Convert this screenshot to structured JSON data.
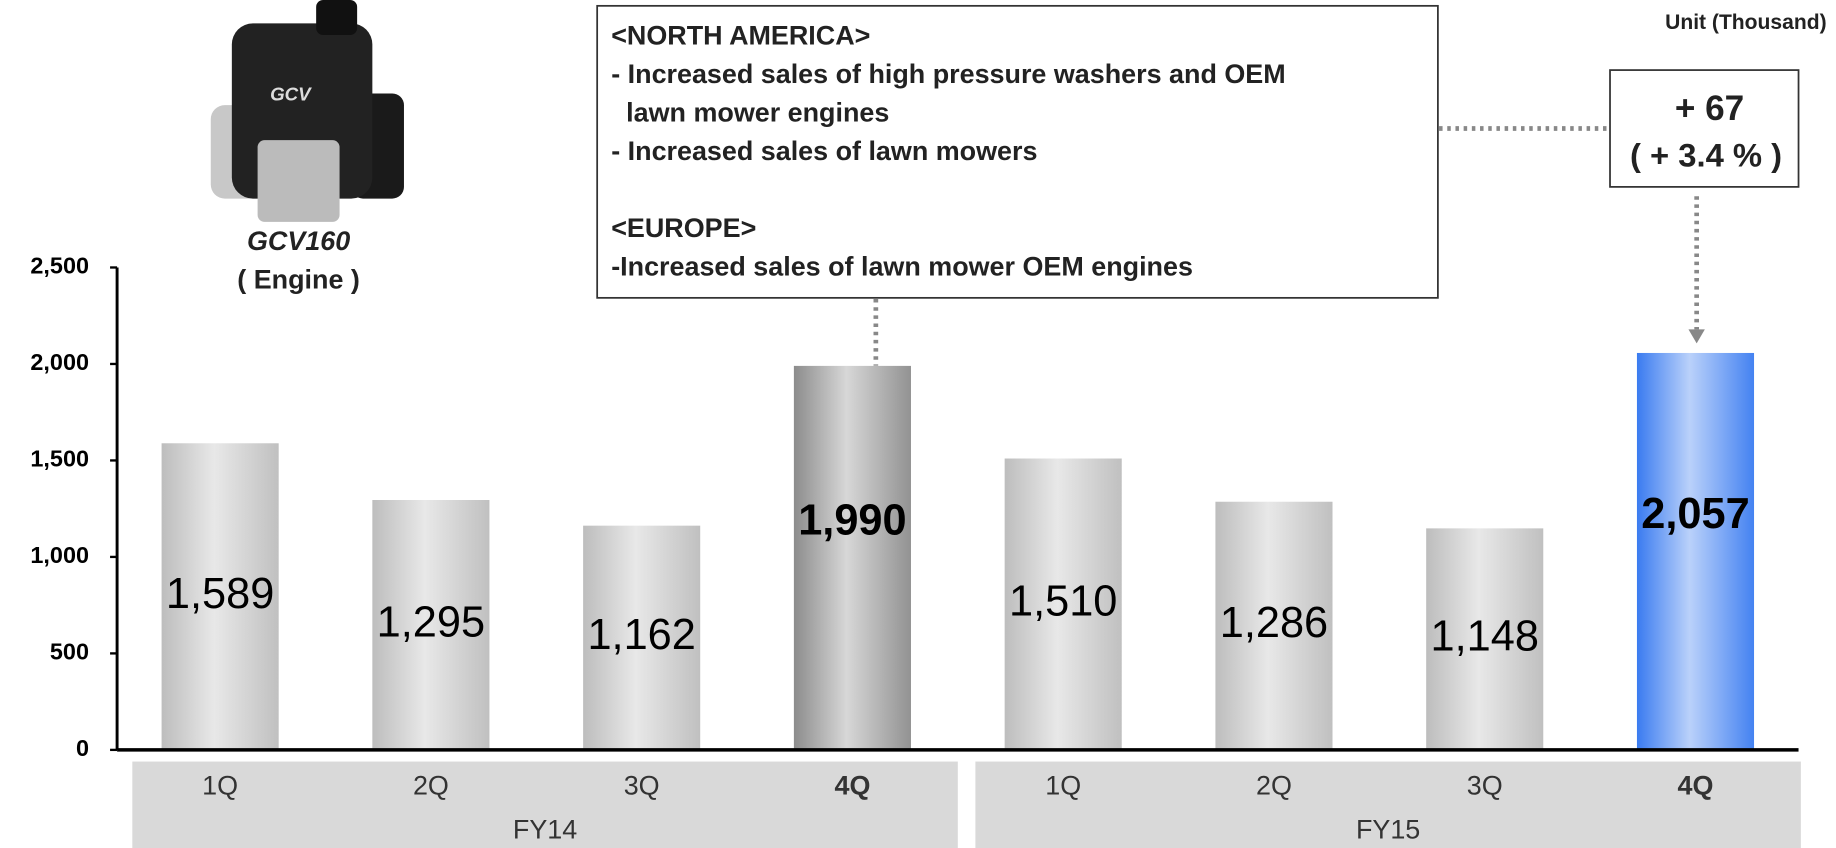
{
  "chart_data": {
    "type": "bar",
    "unit": "Unit (Thousand)",
    "product_name": "GCV160",
    "product_type": "( Engine )",
    "categories": [
      "1Q",
      "2Q",
      "3Q",
      "4Q",
      "1Q",
      "2Q",
      "3Q",
      "4Q"
    ],
    "groups": [
      {
        "label": "FY14",
        "size": 4
      },
      {
        "label": "FY15",
        "size": 4
      }
    ],
    "values": [
      1589,
      1295,
      1162,
      1990,
      1510,
      1286,
      1148,
      2057
    ],
    "value_labels": [
      "1,589",
      "1,295",
      "1,162",
      "1,990",
      "1,510",
      "1,286",
      "1,148",
      "2,057"
    ],
    "highlight": [
      false,
      false,
      false,
      true,
      false,
      false,
      false,
      true
    ],
    "bar_colors": [
      "#bdbdbd",
      "#bdbdbd",
      "#bdbdbd",
      "#8c8c8c",
      "#bdbdbd",
      "#bdbdbd",
      "#bdbdbd",
      "#3a7bf0"
    ],
    "ylim": [
      0,
      2500
    ],
    "yticks": [
      0,
      500,
      {
        "value": 1000,
        "label": "1,000"
      },
      {
        "value": 1500,
        "label": "1,500"
      },
      {
        "value": 2000,
        "label": "2,000"
      },
      {
        "value": 2500,
        "label": "2,500"
      }
    ],
    "annotation_lines": [
      "<NORTH AMERICA>",
      "- Increased sales of high pressure washers and OEM",
      "  lawn mower engines",
      "- Increased sales of lawn mowers",
      "",
      "<EUROPE>",
      "-Increased sales of lawn mower OEM engines"
    ],
    "change": "+ 67",
    "change_pct": "( + 3.4 % )"
  }
}
